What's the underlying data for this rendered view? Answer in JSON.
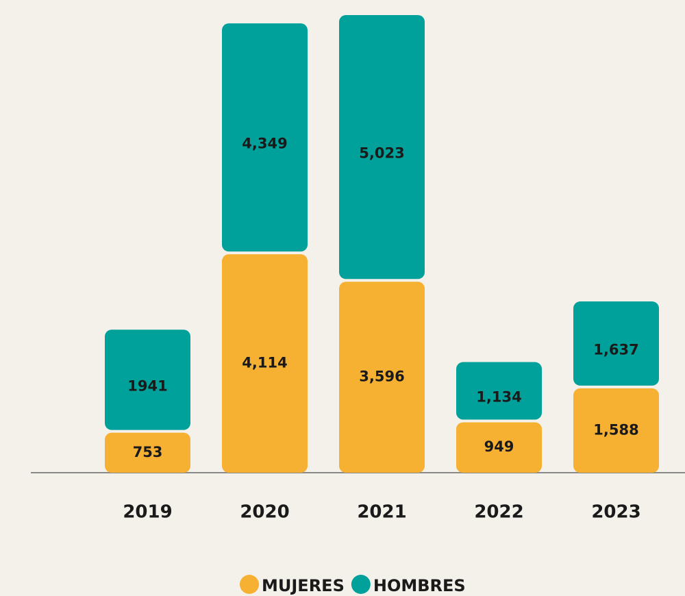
{
  "chart_data": {
    "type": "stacked_bar",
    "categories": [
      "2019",
      "2020",
      "2021",
      "2022",
      "2023"
    ],
    "series": [
      {
        "name": "MUJERES",
        "color": "#f6b133",
        "values": [
          753,
          4114,
          3596,
          949,
          1588
        ],
        "value_labels": [
          "753",
          "4,114",
          "3,596",
          "949",
          "1,588"
        ]
      },
      {
        "name": "HOMBRES",
        "color": "#00a19a",
        "values": [
          1941,
          4349,
          5023,
          1134,
          1637
        ],
        "value_labels": [
          "1941",
          "4,349",
          "5,023",
          "1,134",
          "1,637"
        ]
      }
    ]
  }
}
